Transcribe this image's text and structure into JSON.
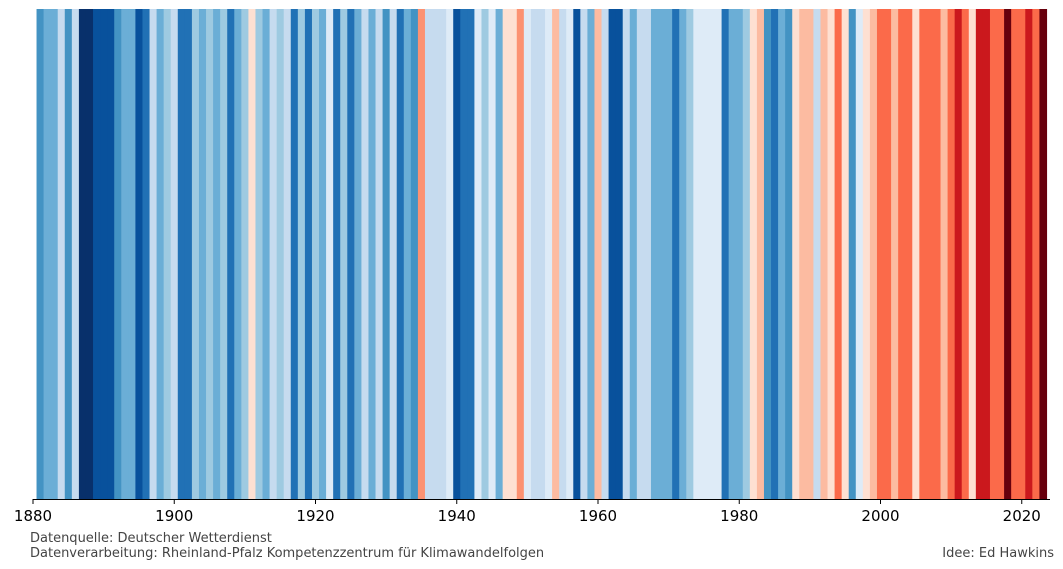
{
  "chart_data": {
    "type": "heatmap",
    "title": "",
    "xlabel": "",
    "ylabel": "",
    "first_year": 1880,
    "xlim": [
      1880,
      2024
    ],
    "x_ticks": [
      "1880",
      "1900",
      "1920",
      "1940",
      "1960",
      "1980",
      "2000",
      "2020"
    ],
    "years": [
      1881,
      1882,
      1883,
      1884,
      1885,
      1886,
      1887,
      1888,
      1889,
      1890,
      1891,
      1892,
      1893,
      1894,
      1895,
      1896,
      1897,
      1898,
      1899,
      1900,
      1901,
      1902,
      1903,
      1904,
      1905,
      1906,
      1907,
      1908,
      1909,
      1910,
      1911,
      1912,
      1913,
      1914,
      1915,
      1916,
      1917,
      1918,
      1919,
      1920,
      1921,
      1922,
      1923,
      1924,
      1925,
      1926,
      1927,
      1928,
      1929,
      1930,
      1931,
      1932,
      1933,
      1934,
      1935,
      1936,
      1937,
      1938,
      1939,
      1940,
      1941,
      1942,
      1943,
      1944,
      1945,
      1946,
      1947,
      1948,
      1949,
      1950,
      1951,
      1952,
      1953,
      1954,
      1955,
      1956,
      1957,
      1958,
      1959,
      1960,
      1961,
      1962,
      1963,
      1964,
      1965,
      1966,
      1967,
      1968,
      1969,
      1970,
      1971,
      1972,
      1973,
      1974,
      1975,
      1976,
      1977,
      1978,
      1979,
      1980,
      1981,
      1982,
      1983,
      1984,
      1985,
      1986,
      1987,
      1988,
      1989,
      1990,
      1991,
      1992,
      1993,
      1994,
      1995,
      1996,
      1997,
      1998,
      1999,
      2000,
      2001,
      2002,
      2003,
      2004,
      2005,
      2006,
      2007,
      2008,
      2009,
      2010,
      2011,
      2012,
      2013,
      2014,
      2015,
      2016,
      2017,
      2018,
      2019,
      2020,
      2021,
      2022,
      2023
    ],
    "stripe_colors": [
      "#4393c3",
      "#6baed6",
      "#6baed6",
      "#c6dbef",
      "#4393c3",
      "#c6dbef",
      "#08306b",
      "#08306b",
      "#08519c",
      "#08519c",
      "#08519c",
      "#4393c3",
      "#6baed6",
      "#6baed6",
      "#08519c",
      "#2171b5",
      "#c6dbef",
      "#6baed6",
      "#9ecae1",
      "#c6dbef",
      "#2171b5",
      "#2171b5",
      "#9ecae1",
      "#6baed6",
      "#9ecae1",
      "#6baed6",
      "#9ecae1",
      "#2171b5",
      "#6baed6",
      "#9ecae1",
      "#fee0d2",
      "#9ecae1",
      "#6baed6",
      "#c6dbef",
      "#9ecae1",
      "#c6dbef",
      "#2171b5",
      "#9ecae1",
      "#2171b5",
      "#9ecae1",
      "#6baed6",
      "#deebf7",
      "#2171b5",
      "#9ecae1",
      "#2171b5",
      "#6baed6",
      "#c6dbef",
      "#6baed6",
      "#c6dbef",
      "#4393c3",
      "#c6dbef",
      "#2171b5",
      "#6baed6",
      "#4393c3",
      "#fc9272",
      "#c6dbef",
      "#c6dbef",
      "#c6dbef",
      "#deebf7",
      "#08519c",
      "#2171b5",
      "#2171b5",
      "#deebf7",
      "#9ecae1",
      "#deebf7",
      "#6baed6",
      "#fee0d2",
      "#fee0d2",
      "#fc9272",
      "#deebf7",
      "#c6dbef",
      "#c6dbef",
      "#deebf7",
      "#fcbba1",
      "#c6dbef",
      "#deebf7",
      "#08519c",
      "#c6dbef",
      "#6baed6",
      "#fcbba1",
      "#c6dbef",
      "#08519c",
      "#08519c",
      "#c6dbef",
      "#6baed6",
      "#c6dbef",
      "#c6dbef",
      "#6baed6",
      "#6baed6",
      "#6baed6",
      "#2171b5",
      "#6baed6",
      "#9ecae1",
      "#deebf7",
      "#deebf7",
      "#deebf7",
      "#deebf7",
      "#2171b5",
      "#6baed6",
      "#6baed6",
      "#9ecae1",
      "#fee0d2",
      "#fcbba1",
      "#4393c3",
      "#2171b5",
      "#6baed6",
      "#4393c3",
      "#fee0d2",
      "#fcbba1",
      "#fcbba1",
      "#c6dbef",
      "#fcbba1",
      "#fee0d2",
      "#fb6a4a",
      "#fee0d2",
      "#4393c3",
      "#deebf7",
      "#fee0d2",
      "#fcbba1",
      "#fb6a4a",
      "#fb6a4a",
      "#fcbba1",
      "#fb6a4a",
      "#fb6a4a",
      "#fee0d2",
      "#fb6a4a",
      "#fb6a4a",
      "#fb6a4a",
      "#fcbba1",
      "#fb6a4a",
      "#cb181d",
      "#fb6a4a",
      "#fee0d2",
      "#cb181d",
      "#cb181d",
      "#fb6a4a",
      "#fb6a4a",
      "#67000d",
      "#fb6a4a",
      "#fb6a4a",
      "#cb181d",
      "#fb6a4a",
      "#67000d"
    ]
  },
  "footer": {
    "source": "Datenquelle: Deutscher Wetterdienst",
    "processing": "Datenverarbeitung: Rheinland-Pfalz Kompetenzzentrum für Klimawandelfolgen",
    "idea": "Idee: Ed Hawkins"
  }
}
